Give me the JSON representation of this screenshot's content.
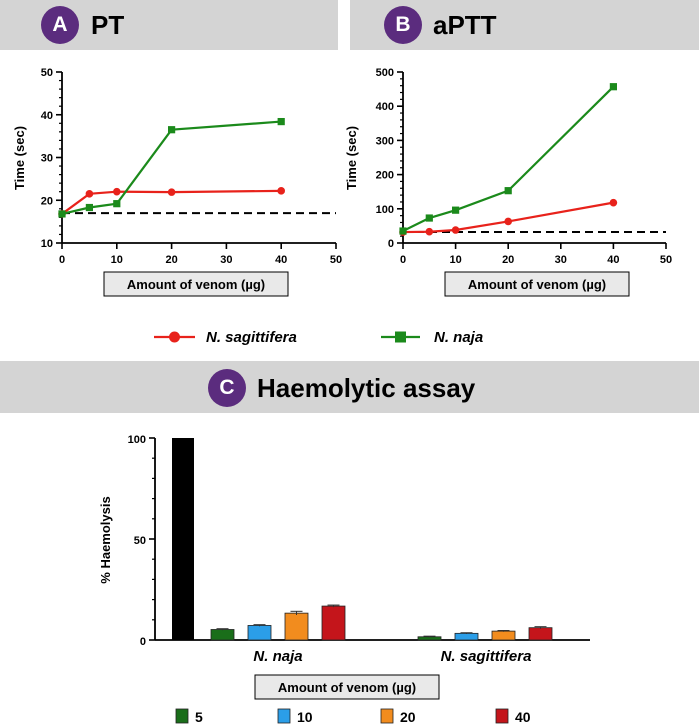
{
  "panels": {
    "a": {
      "letter": "A",
      "title": "PT"
    },
    "b": {
      "letter": "B",
      "title": "aPTT"
    },
    "c": {
      "letter": "C",
      "title": "Haemolytic assay"
    }
  },
  "legend_top": [
    {
      "label": "N. sagittifera",
      "color": "#e8221b"
    },
    {
      "label": "N. naja",
      "color": "#1b8a1b"
    }
  ],
  "chart_data": [
    {
      "id": "A",
      "type": "line",
      "title": "PT",
      "xlabel": "Amount of venom (µg)",
      "ylabel": "Time (sec)",
      "xlim": [
        0,
        50
      ],
      "ylim": [
        10,
        50
      ],
      "x_ticks": [
        0,
        10,
        20,
        30,
        40,
        50
      ],
      "y_ticks": [
        10,
        20,
        30,
        40,
        50
      ],
      "baseline": 17,
      "series": [
        {
          "name": "N. sagittifera",
          "color": "#e8221b",
          "marker": "circle",
          "x": [
            0,
            5,
            10,
            20,
            40
          ],
          "y": [
            16.8,
            21.5,
            22,
            21.9,
            22.2
          ]
        },
        {
          "name": "N. naja",
          "color": "#1b8a1b",
          "marker": "square",
          "x": [
            0,
            5,
            10,
            20,
            40
          ],
          "y": [
            16.8,
            18.3,
            19.2,
            36.5,
            38.4
          ]
        }
      ]
    },
    {
      "id": "B",
      "type": "line",
      "title": "aPTT",
      "xlabel": "Amount of venom (µg)",
      "ylabel": "Time (sec)",
      "xlim": [
        0,
        50
      ],
      "ylim": [
        0,
        500
      ],
      "x_ticks": [
        0,
        10,
        20,
        30,
        40,
        50
      ],
      "y_ticks": [
        0,
        100,
        200,
        300,
        400,
        500
      ],
      "baseline": 32,
      "series": [
        {
          "name": "N. sagittifera",
          "color": "#e8221b",
          "marker": "circle",
          "x": [
            0,
            5,
            10,
            20,
            40
          ],
          "y": [
            32,
            33,
            38,
            63,
            118
          ]
        },
        {
          "name": "N. naja",
          "color": "#1b8a1b",
          "marker": "square",
          "x": [
            0,
            5,
            10,
            20,
            40
          ],
          "y": [
            35,
            73,
            96,
            153,
            457
          ]
        }
      ]
    },
    {
      "id": "C",
      "type": "bar",
      "title": "Haemolytic assay",
      "xlabel": "Amount of venom (µg)",
      "ylabel": "% Haemolysis",
      "ylim": [
        0,
        100
      ],
      "y_ticks": [
        0,
        50,
        100
      ],
      "control": {
        "value": 100,
        "color": "#000000"
      },
      "categories": [
        "N. naja",
        "N. sagittifera"
      ],
      "series": [
        {
          "name": "5",
          "color": "#1a6e1a",
          "values": [
            5.2,
            1.6
          ],
          "errors": [
            0.4,
            0.3
          ]
        },
        {
          "name": "10",
          "color": "#2b9ee8",
          "values": [
            7.2,
            3.3
          ],
          "errors": [
            0.4,
            0.3
          ]
        },
        {
          "name": "20",
          "color": "#f28c1e",
          "values": [
            13.3,
            4.4
          ],
          "errors": [
            0.9,
            0.3
          ]
        },
        {
          "name": "40",
          "color": "#c4151b",
          "values": [
            16.8,
            6.1
          ],
          "errors": [
            0.5,
            0.5
          ]
        }
      ]
    }
  ]
}
